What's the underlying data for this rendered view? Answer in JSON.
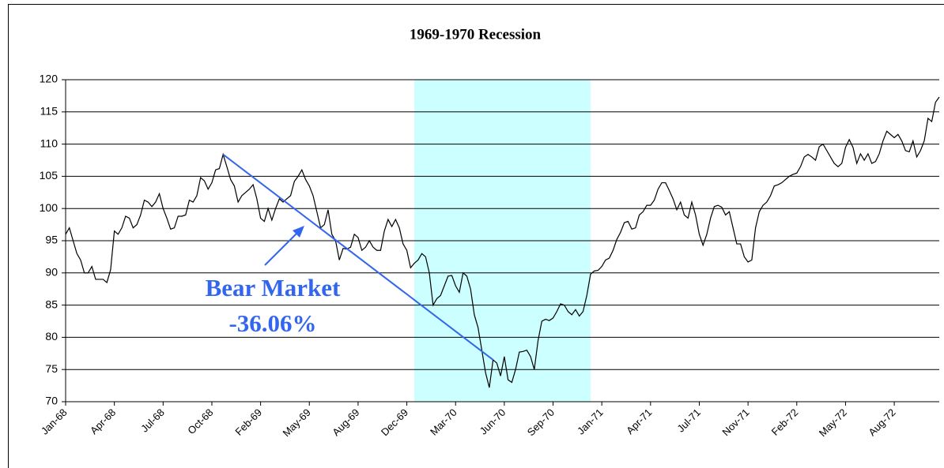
{
  "chart_data": {
    "type": "line",
    "title": "1969-1970 Recession",
    "categories": [
      "Jan-68",
      null,
      null,
      null,
      null,
      null,
      null,
      null,
      null,
      null,
      null,
      null,
      null,
      "Apr-68",
      null,
      null,
      null,
      null,
      null,
      null,
      null,
      null,
      null,
      null,
      null,
      null,
      "Jul-68",
      null,
      null,
      null,
      null,
      null,
      null,
      null,
      null,
      null,
      null,
      null,
      null,
      "Oct-68",
      null,
      null,
      null,
      null,
      null,
      null,
      null,
      null,
      null,
      null,
      null,
      null,
      "Feb-69",
      null,
      null,
      null,
      null,
      null,
      null,
      null,
      null,
      null,
      null,
      null,
      null,
      "May-69",
      null,
      null,
      null,
      null,
      null,
      null,
      null,
      null,
      null,
      null,
      null,
      null,
      "Aug-69",
      null,
      null,
      null,
      null,
      null,
      null,
      null,
      null,
      null,
      null,
      null,
      null,
      "Dec-69",
      null,
      null,
      null,
      null,
      null,
      null,
      null,
      null,
      null,
      null,
      null,
      null,
      "Mar-70",
      null,
      null,
      null,
      null,
      null,
      null,
      null,
      null,
      null,
      null,
      null,
      null,
      "Jun-70",
      null,
      null,
      null,
      null,
      null,
      null,
      null,
      null,
      null,
      null,
      null,
      null,
      "Sep-70",
      null,
      null,
      null,
      null,
      null,
      null,
      null,
      null,
      null,
      null,
      null,
      null,
      "Jan-71",
      null,
      null,
      null,
      null,
      null,
      null,
      null,
      null,
      null,
      null,
      null,
      null,
      "Apr-71",
      null,
      null,
      null,
      null,
      null,
      null,
      null,
      null,
      null,
      null,
      null,
      null,
      "Jul-71",
      null,
      null,
      null,
      null,
      null,
      null,
      null,
      null,
      null,
      null,
      null,
      null,
      "Nov-71",
      null,
      null,
      null,
      null,
      null,
      null,
      null,
      null,
      null,
      null,
      null,
      null,
      "Feb-72",
      null,
      null,
      null,
      null,
      null,
      null,
      null,
      null,
      null,
      null,
      null,
      null,
      "May-72",
      null,
      null,
      null,
      null,
      null,
      null,
      null,
      null,
      null,
      null,
      null,
      null,
      "Aug-72",
      null,
      null,
      null,
      null,
      null,
      null,
      null,
      null,
      null,
      null,
      null,
      null
    ],
    "values": [
      96,
      97,
      95,
      93,
      92,
      90,
      90,
      91,
      89,
      89,
      89,
      88.5,
      90.5,
      96.5,
      96,
      97,
      98.8,
      98.5,
      97,
      97.5,
      99,
      101.3,
      101,
      100.3,
      101,
      102.3,
      100,
      98.5,
      96.8,
      97,
      98.8,
      98.8,
      99,
      101.3,
      101,
      102,
      104.8,
      104.3,
      103,
      104,
      106,
      106.2,
      108.4,
      106.5,
      104.5,
      103.5,
      101,
      102,
      102.5,
      103,
      103.7,
      101.5,
      98.5,
      98,
      100,
      98.2,
      100,
      101.5,
      101,
      101.5,
      102,
      104.2,
      105,
      106,
      104.5,
      103.5,
      102,
      99.5,
      97,
      97.5,
      99.8,
      96,
      95,
      92,
      93.8,
      93.7,
      94,
      96,
      95.5,
      93.5,
      94,
      95,
      94,
      93.5,
      93.5,
      96.5,
      98.3,
      97.2,
      98.3,
      97,
      94.5,
      93.5,
      90.8,
      91.5,
      92,
      93,
      92.5,
      90,
      85,
      86,
      86.5,
      88,
      89.5,
      89.6,
      88,
      87,
      90,
      89.5,
      87.5,
      83.5,
      81.5,
      78,
      74.5,
      72.2,
      76.5,
      76,
      74,
      77,
      73.4,
      73,
      75,
      77.7,
      77.8,
      78,
      77,
      75,
      79.5,
      82.5,
      82.8,
      82.6,
      83,
      84,
      85.2,
      85,
      84,
      83.5,
      84.3,
      83.3,
      84,
      86.5,
      89.8,
      90.3,
      90.4,
      91,
      92,
      92.3,
      93.5,
      95.2,
      96.3,
      97.8,
      98,
      96.8,
      97,
      99,
      99.5,
      100.5,
      100.5,
      101.3,
      103,
      104,
      104,
      102.8,
      101.5,
      99.8,
      101,
      99,
      98.5,
      101,
      99,
      96,
      94.3,
      96,
      98.5,
      100.3,
      100.5,
      100.2,
      99,
      99.5,
      97,
      94.5,
      94.5,
      92.5,
      91.7,
      92,
      97,
      99.5,
      100.5,
      101,
      102,
      103.5,
      103.7,
      104,
      104.5,
      105,
      105.3,
      105.5,
      106.5,
      108,
      108.4,
      108,
      107.5,
      109.6,
      110,
      109,
      108,
      107,
      106.5,
      107,
      109.5,
      110.7,
      109.5,
      107,
      108.5,
      107.5,
      108.5,
      107,
      107.3,
      108.5,
      110.5,
      112,
      111.5,
      111,
      111.5,
      110.5,
      109,
      108.8,
      110.5,
      108,
      109,
      110.5,
      114,
      113.5,
      116.5,
      117.3
    ],
    "color": "#000000",
    "ylim": [
      70,
      120
    ],
    "yticks": [
      70,
      75,
      80,
      85,
      90,
      95,
      100,
      105,
      110,
      115,
      120
    ],
    "grid": true,
    "shade": {
      "from": 93,
      "to": 140,
      "color": "#ccffff"
    },
    "annotation": {
      "text": [
        "Bear Market",
        "-36.06%"
      ],
      "color": "#3366ee",
      "from": 42,
      "to": 114
    }
  }
}
